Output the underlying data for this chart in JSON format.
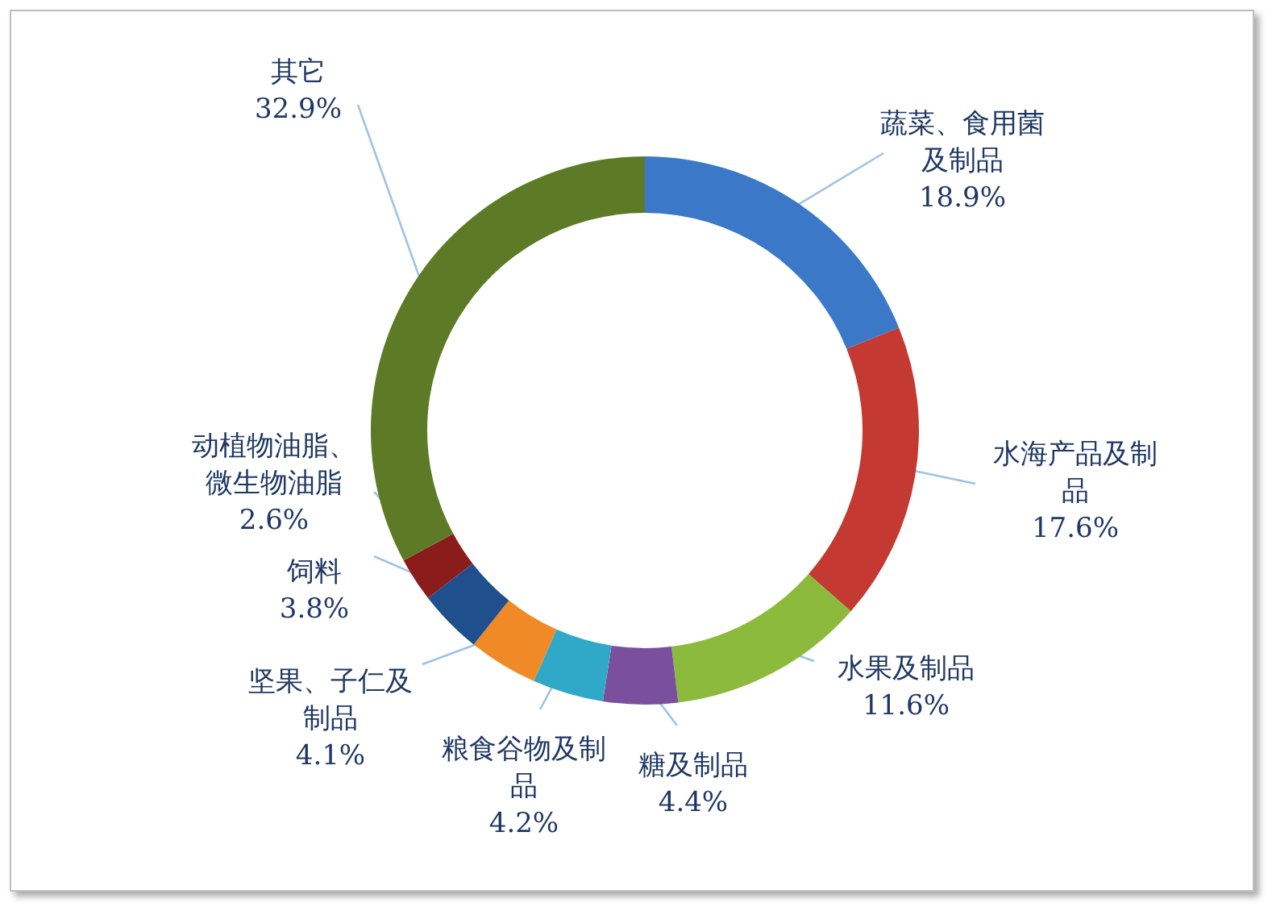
{
  "chart_data": {
    "type": "donut",
    "categories": [
      "蔬菜、食用菌及制品",
      "水海产品及制品",
      "水果及制品",
      "糖及制品",
      "粮食谷物及制品",
      "坚果、子仁及制品",
      "饲料",
      "动植物油脂、微生物油脂",
      "其它"
    ],
    "values": [
      18.9,
      17.6,
      11.6,
      4.4,
      4.2,
      4.1,
      3.8,
      2.6,
      32.9
    ],
    "value_labels": [
      "18.9%",
      "17.6%",
      "11.6%",
      "4.4%",
      "4.2%",
      "4.1%",
      "3.8%",
      "2.6%",
      "32.9%"
    ],
    "colors": [
      "#3b78c8",
      "#c43a32",
      "#8cba3c",
      "#7a4f9e",
      "#30a9c9",
      "#f08a26",
      "#1f4f8c",
      "#8a1c1c",
      "#5d7b27"
    ],
    "legend": false
  }
}
